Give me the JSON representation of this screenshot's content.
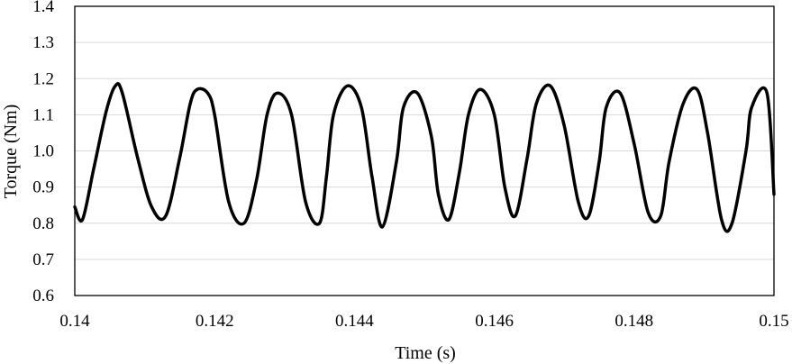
{
  "chart_data": {
    "type": "line",
    "title": "",
    "xlabel": "Time (s)",
    "ylabel": "Torque (Nm)",
    "xlim": [
      0.14,
      0.15
    ],
    "ylim": [
      0.6,
      1.4
    ],
    "x_ticks": [
      0.14,
      0.142,
      0.144,
      0.146,
      0.148,
      0.15
    ],
    "x_tick_labels": [
      "0.14",
      "0.142",
      "0.144",
      "0.146",
      "0.148",
      "0.15"
    ],
    "y_ticks": [
      0.6,
      0.7,
      0.8,
      0.9,
      1.0,
      1.1,
      1.2,
      1.3,
      1.4
    ],
    "y_tick_labels": [
      "0.6",
      "0.7",
      "0.8",
      "0.9",
      "1.0",
      "1.1",
      "1.2",
      "1.3",
      "1.4"
    ],
    "grid": "horizontal",
    "legend": "none",
    "line_color": "#000000",
    "series": [
      {
        "x": [
          0.14,
          0.14011,
          0.14027,
          0.14045,
          0.14058,
          0.14068,
          0.1409,
          0.1411,
          0.1413,
          0.1415,
          0.14165,
          0.14175,
          0.1419,
          0.142,
          0.1422,
          0.14242,
          0.1426,
          0.14275,
          0.1429,
          0.1431,
          0.1433,
          0.1435,
          0.1436,
          0.1437,
          0.1439,
          0.1441,
          0.14425,
          0.1444,
          0.1446,
          0.1447,
          0.1449,
          0.1451,
          0.1452,
          0.14535,
          0.1455,
          0.14563,
          0.1458,
          0.146,
          0.14615,
          0.1463,
          0.14647,
          0.1466,
          0.1468,
          0.147,
          0.1472,
          0.14735,
          0.1475,
          0.1476,
          0.1478,
          0.148,
          0.1482,
          0.14838,
          0.1485,
          0.1487,
          0.1489,
          0.14905,
          0.14925,
          0.1494,
          0.1496,
          0.14968,
          0.1499,
          0.15
        ],
        "y": [
          0.845,
          0.81,
          0.95,
          1.11,
          1.18,
          1.16,
          0.98,
          0.845,
          0.82,
          0.98,
          1.13,
          1.17,
          1.16,
          1.1,
          0.86,
          0.8,
          0.92,
          1.1,
          1.16,
          1.1,
          0.86,
          0.8,
          0.93,
          1.1,
          1.18,
          1.12,
          0.93,
          0.79,
          0.97,
          1.12,
          1.16,
          1.04,
          0.88,
          0.81,
          0.94,
          1.1,
          1.17,
          1.1,
          0.9,
          0.82,
          0.98,
          1.13,
          1.18,
          1.07,
          0.86,
          0.82,
          0.97,
          1.12,
          1.16,
          1.02,
          0.83,
          0.82,
          0.97,
          1.13,
          1.17,
          1.05,
          0.81,
          0.8,
          1.0,
          1.12,
          1.16,
          0.88
        ]
      }
    ]
  }
}
